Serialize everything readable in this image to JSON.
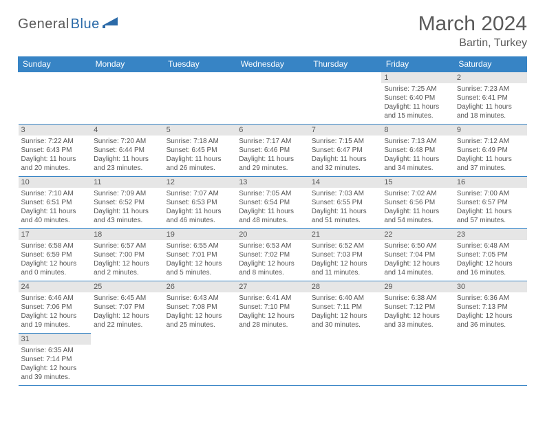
{
  "logo": {
    "general": "General",
    "blue": "Blue"
  },
  "title": "March 2024",
  "location": "Bartin, Turkey",
  "colors": {
    "header_bg": "#3784c5",
    "header_text": "#ffffff",
    "daynum_bg": "#e6e6e6",
    "body_text": "#555555",
    "rule": "#3784c5",
    "page_bg": "#ffffff",
    "logo_gray": "#5a5a5a",
    "logo_blue": "#2b6aa8"
  },
  "day_headers": [
    "Sunday",
    "Monday",
    "Tuesday",
    "Wednesday",
    "Thursday",
    "Friday",
    "Saturday"
  ],
  "weeks": [
    [
      null,
      null,
      null,
      null,
      null,
      {
        "n": "1",
        "sr": "Sunrise: 7:25 AM",
        "ss": "Sunset: 6:40 PM",
        "d1": "Daylight: 11 hours",
        "d2": "and 15 minutes."
      },
      {
        "n": "2",
        "sr": "Sunrise: 7:23 AM",
        "ss": "Sunset: 6:41 PM",
        "d1": "Daylight: 11 hours",
        "d2": "and 18 minutes."
      }
    ],
    [
      {
        "n": "3",
        "sr": "Sunrise: 7:22 AM",
        "ss": "Sunset: 6:43 PM",
        "d1": "Daylight: 11 hours",
        "d2": "and 20 minutes."
      },
      {
        "n": "4",
        "sr": "Sunrise: 7:20 AM",
        "ss": "Sunset: 6:44 PM",
        "d1": "Daylight: 11 hours",
        "d2": "and 23 minutes."
      },
      {
        "n": "5",
        "sr": "Sunrise: 7:18 AM",
        "ss": "Sunset: 6:45 PM",
        "d1": "Daylight: 11 hours",
        "d2": "and 26 minutes."
      },
      {
        "n": "6",
        "sr": "Sunrise: 7:17 AM",
        "ss": "Sunset: 6:46 PM",
        "d1": "Daylight: 11 hours",
        "d2": "and 29 minutes."
      },
      {
        "n": "7",
        "sr": "Sunrise: 7:15 AM",
        "ss": "Sunset: 6:47 PM",
        "d1": "Daylight: 11 hours",
        "d2": "and 32 minutes."
      },
      {
        "n": "8",
        "sr": "Sunrise: 7:13 AM",
        "ss": "Sunset: 6:48 PM",
        "d1": "Daylight: 11 hours",
        "d2": "and 34 minutes."
      },
      {
        "n": "9",
        "sr": "Sunrise: 7:12 AM",
        "ss": "Sunset: 6:49 PM",
        "d1": "Daylight: 11 hours",
        "d2": "and 37 minutes."
      }
    ],
    [
      {
        "n": "10",
        "sr": "Sunrise: 7:10 AM",
        "ss": "Sunset: 6:51 PM",
        "d1": "Daylight: 11 hours",
        "d2": "and 40 minutes."
      },
      {
        "n": "11",
        "sr": "Sunrise: 7:09 AM",
        "ss": "Sunset: 6:52 PM",
        "d1": "Daylight: 11 hours",
        "d2": "and 43 minutes."
      },
      {
        "n": "12",
        "sr": "Sunrise: 7:07 AM",
        "ss": "Sunset: 6:53 PM",
        "d1": "Daylight: 11 hours",
        "d2": "and 46 minutes."
      },
      {
        "n": "13",
        "sr": "Sunrise: 7:05 AM",
        "ss": "Sunset: 6:54 PM",
        "d1": "Daylight: 11 hours",
        "d2": "and 48 minutes."
      },
      {
        "n": "14",
        "sr": "Sunrise: 7:03 AM",
        "ss": "Sunset: 6:55 PM",
        "d1": "Daylight: 11 hours",
        "d2": "and 51 minutes."
      },
      {
        "n": "15",
        "sr": "Sunrise: 7:02 AM",
        "ss": "Sunset: 6:56 PM",
        "d1": "Daylight: 11 hours",
        "d2": "and 54 minutes."
      },
      {
        "n": "16",
        "sr": "Sunrise: 7:00 AM",
        "ss": "Sunset: 6:57 PM",
        "d1": "Daylight: 11 hours",
        "d2": "and 57 minutes."
      }
    ],
    [
      {
        "n": "17",
        "sr": "Sunrise: 6:58 AM",
        "ss": "Sunset: 6:59 PM",
        "d1": "Daylight: 12 hours",
        "d2": "and 0 minutes."
      },
      {
        "n": "18",
        "sr": "Sunrise: 6:57 AM",
        "ss": "Sunset: 7:00 PM",
        "d1": "Daylight: 12 hours",
        "d2": "and 2 minutes."
      },
      {
        "n": "19",
        "sr": "Sunrise: 6:55 AM",
        "ss": "Sunset: 7:01 PM",
        "d1": "Daylight: 12 hours",
        "d2": "and 5 minutes."
      },
      {
        "n": "20",
        "sr": "Sunrise: 6:53 AM",
        "ss": "Sunset: 7:02 PM",
        "d1": "Daylight: 12 hours",
        "d2": "and 8 minutes."
      },
      {
        "n": "21",
        "sr": "Sunrise: 6:52 AM",
        "ss": "Sunset: 7:03 PM",
        "d1": "Daylight: 12 hours",
        "d2": "and 11 minutes."
      },
      {
        "n": "22",
        "sr": "Sunrise: 6:50 AM",
        "ss": "Sunset: 7:04 PM",
        "d1": "Daylight: 12 hours",
        "d2": "and 14 minutes."
      },
      {
        "n": "23",
        "sr": "Sunrise: 6:48 AM",
        "ss": "Sunset: 7:05 PM",
        "d1": "Daylight: 12 hours",
        "d2": "and 16 minutes."
      }
    ],
    [
      {
        "n": "24",
        "sr": "Sunrise: 6:46 AM",
        "ss": "Sunset: 7:06 PM",
        "d1": "Daylight: 12 hours",
        "d2": "and 19 minutes."
      },
      {
        "n": "25",
        "sr": "Sunrise: 6:45 AM",
        "ss": "Sunset: 7:07 PM",
        "d1": "Daylight: 12 hours",
        "d2": "and 22 minutes."
      },
      {
        "n": "26",
        "sr": "Sunrise: 6:43 AM",
        "ss": "Sunset: 7:08 PM",
        "d1": "Daylight: 12 hours",
        "d2": "and 25 minutes."
      },
      {
        "n": "27",
        "sr": "Sunrise: 6:41 AM",
        "ss": "Sunset: 7:10 PM",
        "d1": "Daylight: 12 hours",
        "d2": "and 28 minutes."
      },
      {
        "n": "28",
        "sr": "Sunrise: 6:40 AM",
        "ss": "Sunset: 7:11 PM",
        "d1": "Daylight: 12 hours",
        "d2": "and 30 minutes."
      },
      {
        "n": "29",
        "sr": "Sunrise: 6:38 AM",
        "ss": "Sunset: 7:12 PM",
        "d1": "Daylight: 12 hours",
        "d2": "and 33 minutes."
      },
      {
        "n": "30",
        "sr": "Sunrise: 6:36 AM",
        "ss": "Sunset: 7:13 PM",
        "d1": "Daylight: 12 hours",
        "d2": "and 36 minutes."
      }
    ],
    [
      {
        "n": "31",
        "sr": "Sunrise: 6:35 AM",
        "ss": "Sunset: 7:14 PM",
        "d1": "Daylight: 12 hours",
        "d2": "and 39 minutes."
      },
      null,
      null,
      null,
      null,
      null,
      null
    ]
  ]
}
